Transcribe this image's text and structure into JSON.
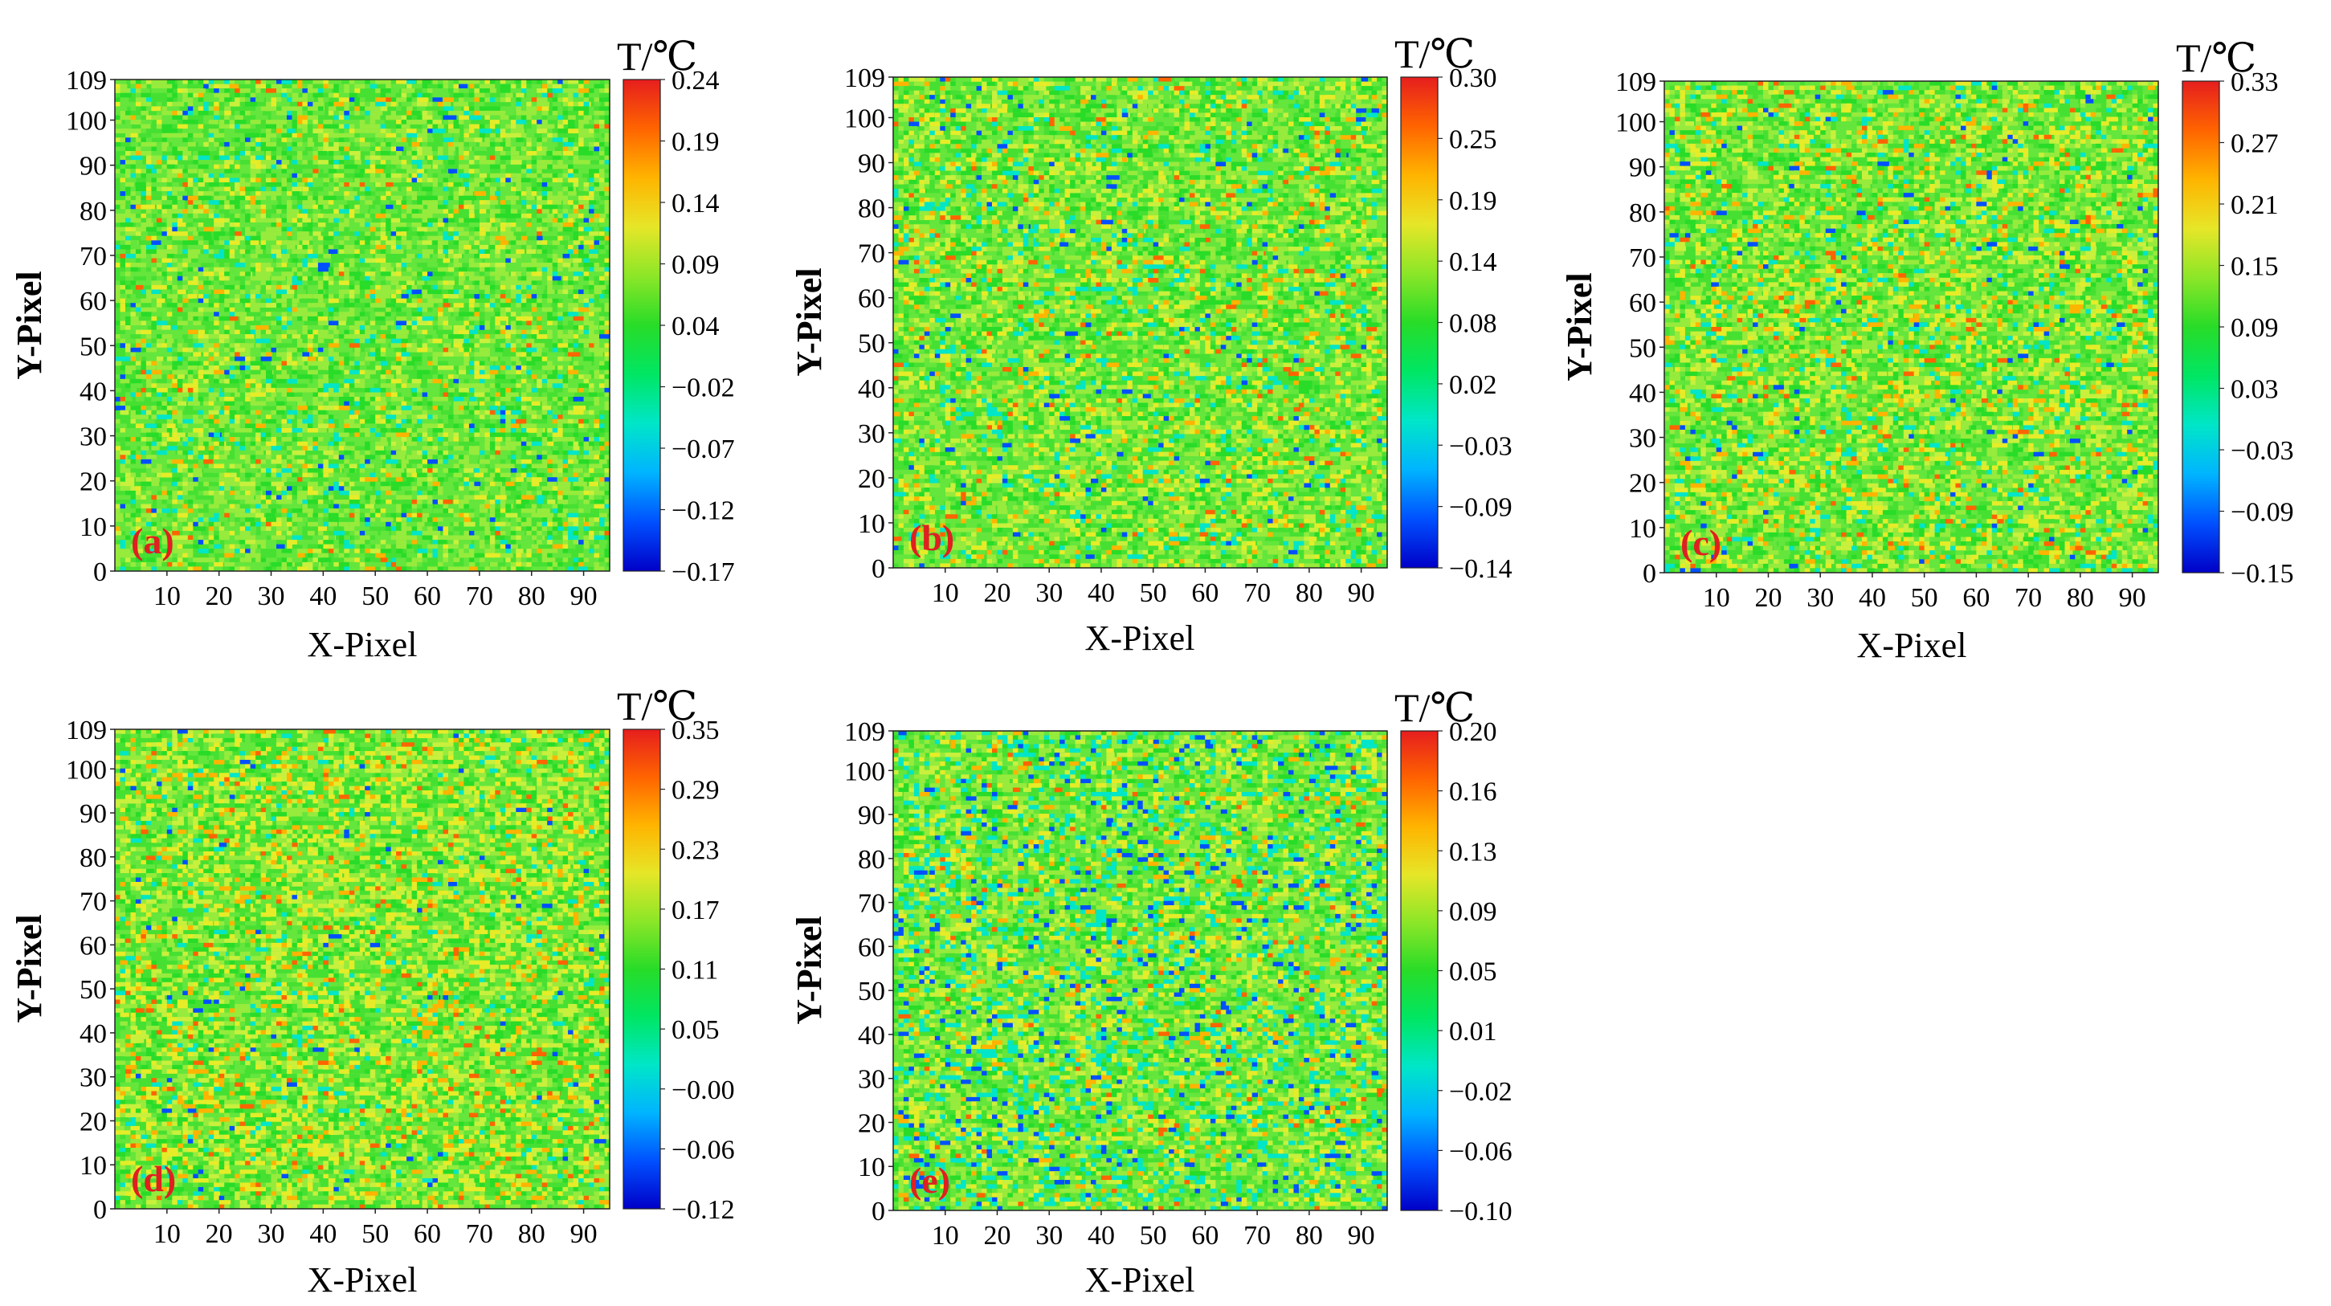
{
  "figure": {
    "colormap": [
      "#0000c8",
      "#0050ff",
      "#00b4ff",
      "#00e6c8",
      "#00e664",
      "#28dc28",
      "#8ce628",
      "#e6e628",
      "#ffb400",
      "#ff6400",
      "#e61e1e"
    ],
    "dominant_field": [
      "#28dc28",
      "#46e032",
      "#64e63c",
      "#96eb3c",
      "#c8f03c",
      "#e6ec28",
      "#f0c828"
    ],
    "label_color": "#e02020"
  },
  "chart_data": [
    {
      "type": "heatmap",
      "panel_label": "(a)",
      "label_text": "a",
      "xlabel": "X-Pixel",
      "ylabel": "Y-Pixel",
      "colorbar_title": "T/℃",
      "x_ticks": [
        "10",
        "20",
        "30",
        "40",
        "50",
        "60",
        "70",
        "80",
        "90"
      ],
      "y_ticks": [
        "0",
        "10",
        "20",
        "30",
        "40",
        "50",
        "60",
        "70",
        "80",
        "90",
        "100",
        "109"
      ],
      "xlim": [
        0,
        95
      ],
      "ylim": [
        0,
        109
      ],
      "colorbar_ticks": [
        "0.24",
        "0.19",
        "0.14",
        "0.09",
        "0.04",
        "−0.02",
        "−0.07",
        "−0.12",
        "−0.17"
      ],
      "value_range": [
        -0.17,
        0.24
      ]
    },
    {
      "type": "heatmap",
      "panel_label": "(b)",
      "label_text": "b",
      "xlabel": "X-Pixel",
      "ylabel": "Y-Pixel",
      "colorbar_title": "T/℃",
      "x_ticks": [
        "10",
        "20",
        "30",
        "40",
        "50",
        "60",
        "70",
        "80",
        "90"
      ],
      "y_ticks": [
        "0",
        "10",
        "20",
        "30",
        "40",
        "50",
        "60",
        "70",
        "80",
        "90",
        "100",
        "109"
      ],
      "xlim": [
        0,
        95
      ],
      "ylim": [
        0,
        109
      ],
      "colorbar_ticks": [
        "0.30",
        "0.25",
        "0.19",
        "0.14",
        "0.08",
        "0.02",
        "−0.03",
        "−0.09",
        "−0.14"
      ],
      "value_range": [
        -0.14,
        0.3
      ]
    },
    {
      "type": "heatmap",
      "panel_label": "(c)",
      "label_text": "c",
      "xlabel": "X-Pixel",
      "ylabel": "Y-Pixel",
      "colorbar_title": "T/℃",
      "x_ticks": [
        "10",
        "20",
        "30",
        "40",
        "50",
        "60",
        "70",
        "80",
        "90"
      ],
      "y_ticks": [
        "0",
        "10",
        "20",
        "30",
        "40",
        "50",
        "60",
        "70",
        "80",
        "90",
        "100",
        "109"
      ],
      "xlim": [
        0,
        95
      ],
      "ylim": [
        0,
        109
      ],
      "colorbar_ticks": [
        "0.33",
        "0.27",
        "0.21",
        "0.15",
        "0.09",
        "0.03",
        "−0.03",
        "−0.09",
        "−0.15"
      ],
      "value_range": [
        -0.15,
        0.33
      ]
    },
    {
      "type": "heatmap",
      "panel_label": "(d)",
      "label_text": "d",
      "xlabel": "X-Pixel",
      "ylabel": "Y-Pixel",
      "colorbar_title": "T/℃",
      "x_ticks": [
        "10",
        "20",
        "30",
        "40",
        "50",
        "60",
        "70",
        "80",
        "90"
      ],
      "y_ticks": [
        "0",
        "10",
        "20",
        "30",
        "40",
        "50",
        "60",
        "70",
        "80",
        "90",
        "100",
        "109"
      ],
      "xlim": [
        0,
        95
      ],
      "ylim": [
        0,
        109
      ],
      "colorbar_ticks": [
        "0.35",
        "0.29",
        "0.23",
        "0.17",
        "0.11",
        "0.05",
        "−0.00",
        "−0.06",
        "−0.12"
      ],
      "value_range": [
        -0.12,
        0.35
      ]
    },
    {
      "type": "heatmap",
      "panel_label": "(e)",
      "label_text": "e",
      "xlabel": "X-Pixel",
      "ylabel": "Y-Pixel",
      "colorbar_title": "T/℃",
      "x_ticks": [
        "10",
        "20",
        "30",
        "40",
        "50",
        "60",
        "70",
        "80",
        "90"
      ],
      "y_ticks": [
        "0",
        "10",
        "20",
        "30",
        "40",
        "50",
        "60",
        "70",
        "80",
        "90",
        "100",
        "109"
      ],
      "xlim": [
        0,
        95
      ],
      "ylim": [
        0,
        109
      ],
      "colorbar_ticks": [
        "0.20",
        "0.16",
        "0.13",
        "0.09",
        "0.05",
        "0.01",
        "−0.02",
        "−0.06",
        "−0.10"
      ],
      "value_range": [
        -0.1,
        0.2
      ]
    }
  ]
}
